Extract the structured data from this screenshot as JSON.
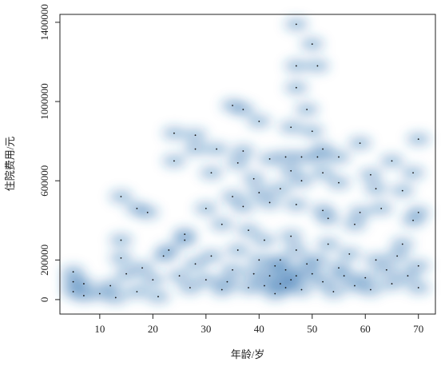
{
  "chart_data": {
    "type": "smooth-scatter",
    "x_label": "年龄/岁",
    "y_label": "住院费用/元",
    "color": "#2a6fb0",
    "point_color": "#111",
    "xlim": [
      2.5,
      73.2
    ],
    "ylim": [
      -73000,
      1440000
    ],
    "xticks": [
      10,
      20,
      30,
      40,
      50,
      60,
      70
    ],
    "yticks": [
      0,
      200000,
      600000,
      1000000,
      1400000
    ],
    "x": [
      47,
      50,
      47,
      51,
      47,
      35,
      37,
      49,
      40,
      46,
      24,
      28,
      50,
      28,
      32,
      37,
      52,
      59,
      70,
      24,
      36,
      42,
      45,
      48,
      51,
      55,
      65,
      31,
      39,
      46,
      52,
      61,
      69,
      14,
      35,
      40,
      44,
      48,
      55,
      62,
      67,
      17,
      19,
      30,
      37,
      42,
      47,
      52,
      59,
      63,
      70,
      5,
      5,
      7,
      5,
      7,
      13,
      21,
      14,
      14,
      17,
      26,
      26,
      22,
      33,
      53,
      58,
      69,
      67,
      70,
      30,
      35,
      38,
      40,
      42,
      44,
      45,
      46,
      48,
      50,
      52,
      55,
      58,
      60,
      62,
      65,
      68,
      25,
      28,
      33,
      36,
      41,
      47,
      53,
      57,
      43,
      49,
      39,
      34,
      27,
      20,
      18,
      23,
      31,
      45,
      44,
      51,
      54,
      56,
      61,
      64,
      66,
      70,
      12,
      15,
      10,
      47,
      43,
      41,
      46,
      38
    ],
    "y": [
      1390000,
      1290000,
      1180000,
      1180000,
      1070000,
      980000,
      960000,
      960000,
      900000,
      870000,
      840000,
      830000,
      850000,
      760000,
      760000,
      750000,
      760000,
      790000,
      810000,
      700000,
      690000,
      710000,
      720000,
      720000,
      720000,
      720000,
      700000,
      640000,
      610000,
      650000,
      640000,
      630000,
      640000,
      520000,
      520000,
      540000,
      560000,
      600000,
      590000,
      560000,
      550000,
      460000,
      440000,
      460000,
      470000,
      490000,
      480000,
      450000,
      440000,
      460000,
      440000,
      140000,
      90000,
      80000,
      40000,
      20000,
      10000,
      15000,
      300000,
      210000,
      40000,
      330000,
      300000,
      220000,
      380000,
      410000,
      380000,
      400000,
      280000,
      170000,
      100000,
      150000,
      60000,
      200000,
      120000,
      80000,
      150000,
      100000,
      50000,
      130000,
      90000,
      160000,
      70000,
      110000,
      200000,
      80000,
      120000,
      120000,
      180000,
      50000,
      250000,
      300000,
      250000,
      280000,
      230000,
      30000,
      180000,
      130000,
      90000,
      60000,
      100000,
      160000,
      250000,
      220000,
      60000,
      200000,
      200000,
      40000,
      120000,
      50000,
      150000,
      220000,
      60000,
      70000,
      130000,
      30000,
      120000,
      170000,
      70000,
      320000,
      350000
    ]
  }
}
